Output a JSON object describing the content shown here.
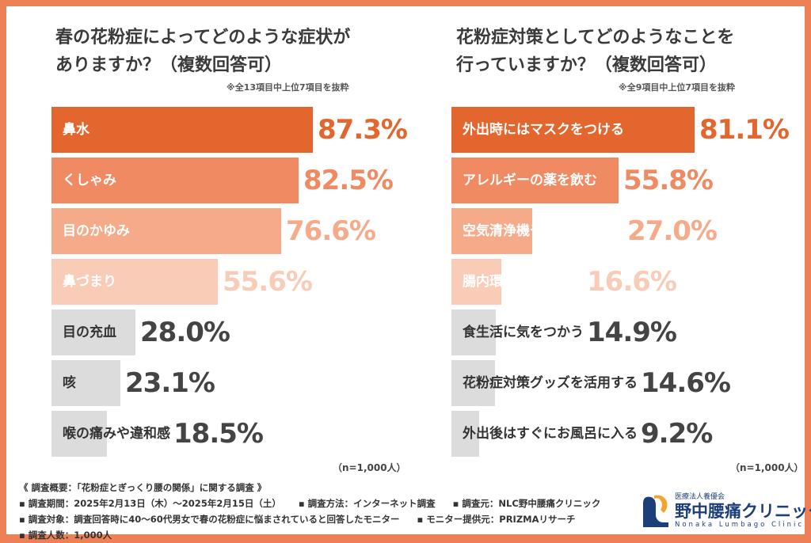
{
  "charts": [
    {
      "title_line1": "春の花粉症によってどのような症状が",
      "title_line2": "ありますか？（複数回答可）",
      "note": "※全13項目中上位7項目を抜粋",
      "n_label": "（n=1,000人）"
    },
    {
      "title_line1": "花粉症対策としてどのようなことを",
      "title_line2": "行っていますか？（複数回答可）",
      "note": "※全9項目中上位7項目を抜粋",
      "n_label": "（n=1,000人）"
    }
  ],
  "chart_data": [
    {
      "type": "bar",
      "orientation": "horizontal",
      "title": "春の花粉症によってどのような症状がありますか？（複数回答可）",
      "categories": [
        "鼻水",
        "くしゃみ",
        "目のかゆみ",
        "鼻づまり",
        "目の充血",
        "咳",
        "喉の痛みや違和感"
      ],
      "values": [
        87.3,
        82.5,
        76.6,
        55.6,
        28.0,
        23.1,
        18.5
      ],
      "value_labels": [
        "87.3%",
        "82.5%",
        "76.6%",
        "55.6%",
        "28.0%",
        "23.1%",
        "18.5%"
      ],
      "unit": "%",
      "xlim": [
        0,
        100
      ]
    },
    {
      "type": "bar",
      "orientation": "horizontal",
      "title": "花粉症対策としてどのようなことを行っていますか？（複数回答可）",
      "categories": [
        "外出時にはマスクをつける",
        "アレルギーの薬を飲む",
        "空気清浄機や加湿器の使用",
        "腸内環境をよくする",
        "食生活に気をつかう",
        "花粉症対策グッズを活用する",
        "外出後はすぐにお風呂に入る"
      ],
      "values": [
        81.1,
        55.8,
        27.0,
        16.6,
        14.9,
        14.6,
        9.2
      ],
      "value_labels": [
        "81.1%",
        "55.8%",
        "27.0%",
        "16.6%",
        "14.9%",
        "14.6%",
        "9.2%"
      ],
      "unit": "%",
      "xlim": [
        0,
        100
      ]
    }
  ],
  "colors": {
    "border": "#ee8055",
    "rank1": "#e2662d",
    "rank2": "#ef8a62",
    "rank3": "#f5ab8a",
    "rank4": "#f9ccb8",
    "other": "#dcdcdc",
    "text_dark": "#3a3a3a"
  },
  "footer": {
    "heading": "《 調査概要：「花粉症とぎっくり腰の関係」に関する調査 》",
    "period": "▪ 調査期間：2025年2月13日（木）〜2025年2月15日（土）",
    "method": "▪ 調査方法：インターネット調査",
    "source": "▪ 調査元：NLC野中腰痛クリニック",
    "target": "▪ 調査対象：調査回答時に40〜60代男女で春の花粉症に悩まされていると回答したモニター",
    "provider": "▪ モニター提供元：PRIZMAリサーチ",
    "count": "▪ 調査人数：1,000人"
  },
  "logo": {
    "org": "医療法人養優会",
    "name": "野中腰痛クリニック",
    "roman": "Nonaka Lumbago Clinic"
  }
}
